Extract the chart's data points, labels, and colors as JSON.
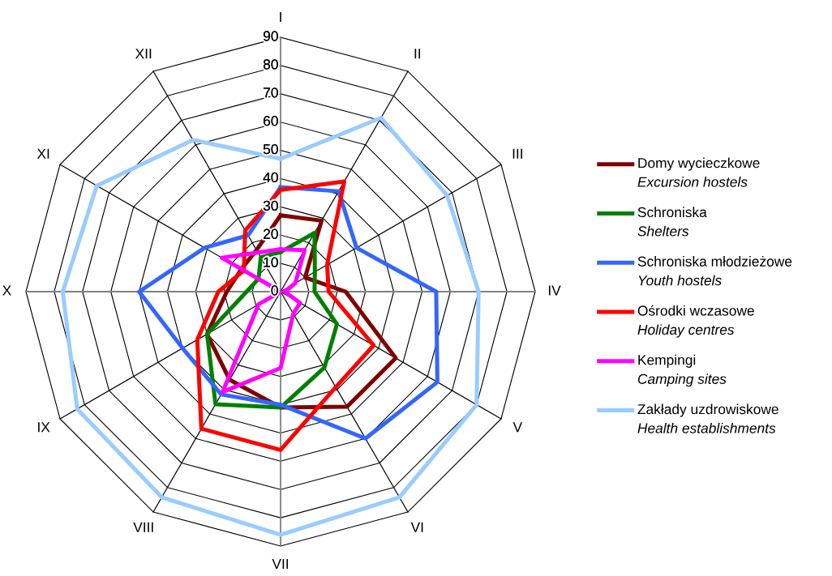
{
  "chart_data": {
    "type": "radar",
    "categories": [
      "I",
      "II",
      "III",
      "IV",
      "V",
      "VI",
      "VII",
      "VIII",
      "IX",
      "X",
      "XI",
      "XII"
    ],
    "ylim": [
      0,
      90
    ],
    "yticks": [
      0,
      10,
      20,
      30,
      40,
      50,
      60,
      70,
      80,
      90
    ],
    "grid": true,
    "legend": "right",
    "series": [
      {
        "name": "Domy wycieczkowe\nExcursion hostels",
        "color": "#800000",
        "values": [
          27,
          29,
          10,
          23,
          47,
          47,
          41,
          36,
          30,
          19,
          16,
          17
        ]
      },
      {
        "name": "Schroniska\nShelters",
        "color": "#008000",
        "values": [
          14,
          24,
          14,
          12,
          23,
          31,
          41,
          46,
          30,
          12,
          9,
          14
        ]
      },
      {
        "name": "Schroniska młodzieżowe\nYouth hostels",
        "color": "#3366ff",
        "values": [
          37,
          41,
          31,
          55,
          64,
          60,
          40,
          42,
          40,
          50,
          31,
          23
        ]
      },
      {
        "name": "Ośrodki wczasowe\nHoliday centres",
        "color": "#ff0000",
        "values": [
          36,
          45,
          19,
          17,
          38,
          39,
          56,
          56,
          34,
          22,
          15,
          25
        ]
      },
      {
        "name": "Kempingi\nCamping sites",
        "color": "#ff00ff",
        "values": [
          15,
          17,
          6,
          1.5,
          8,
          9,
          27,
          41,
          9,
          0,
          24,
          16
        ]
      },
      {
        "name": "Zakłady uzdrowiskowe\nHealth establishments",
        "color": "#99ccff",
        "values": [
          47,
          71,
          68,
          70,
          80,
          84,
          86,
          84,
          83,
          77,
          75,
          62
        ]
      }
    ]
  }
}
